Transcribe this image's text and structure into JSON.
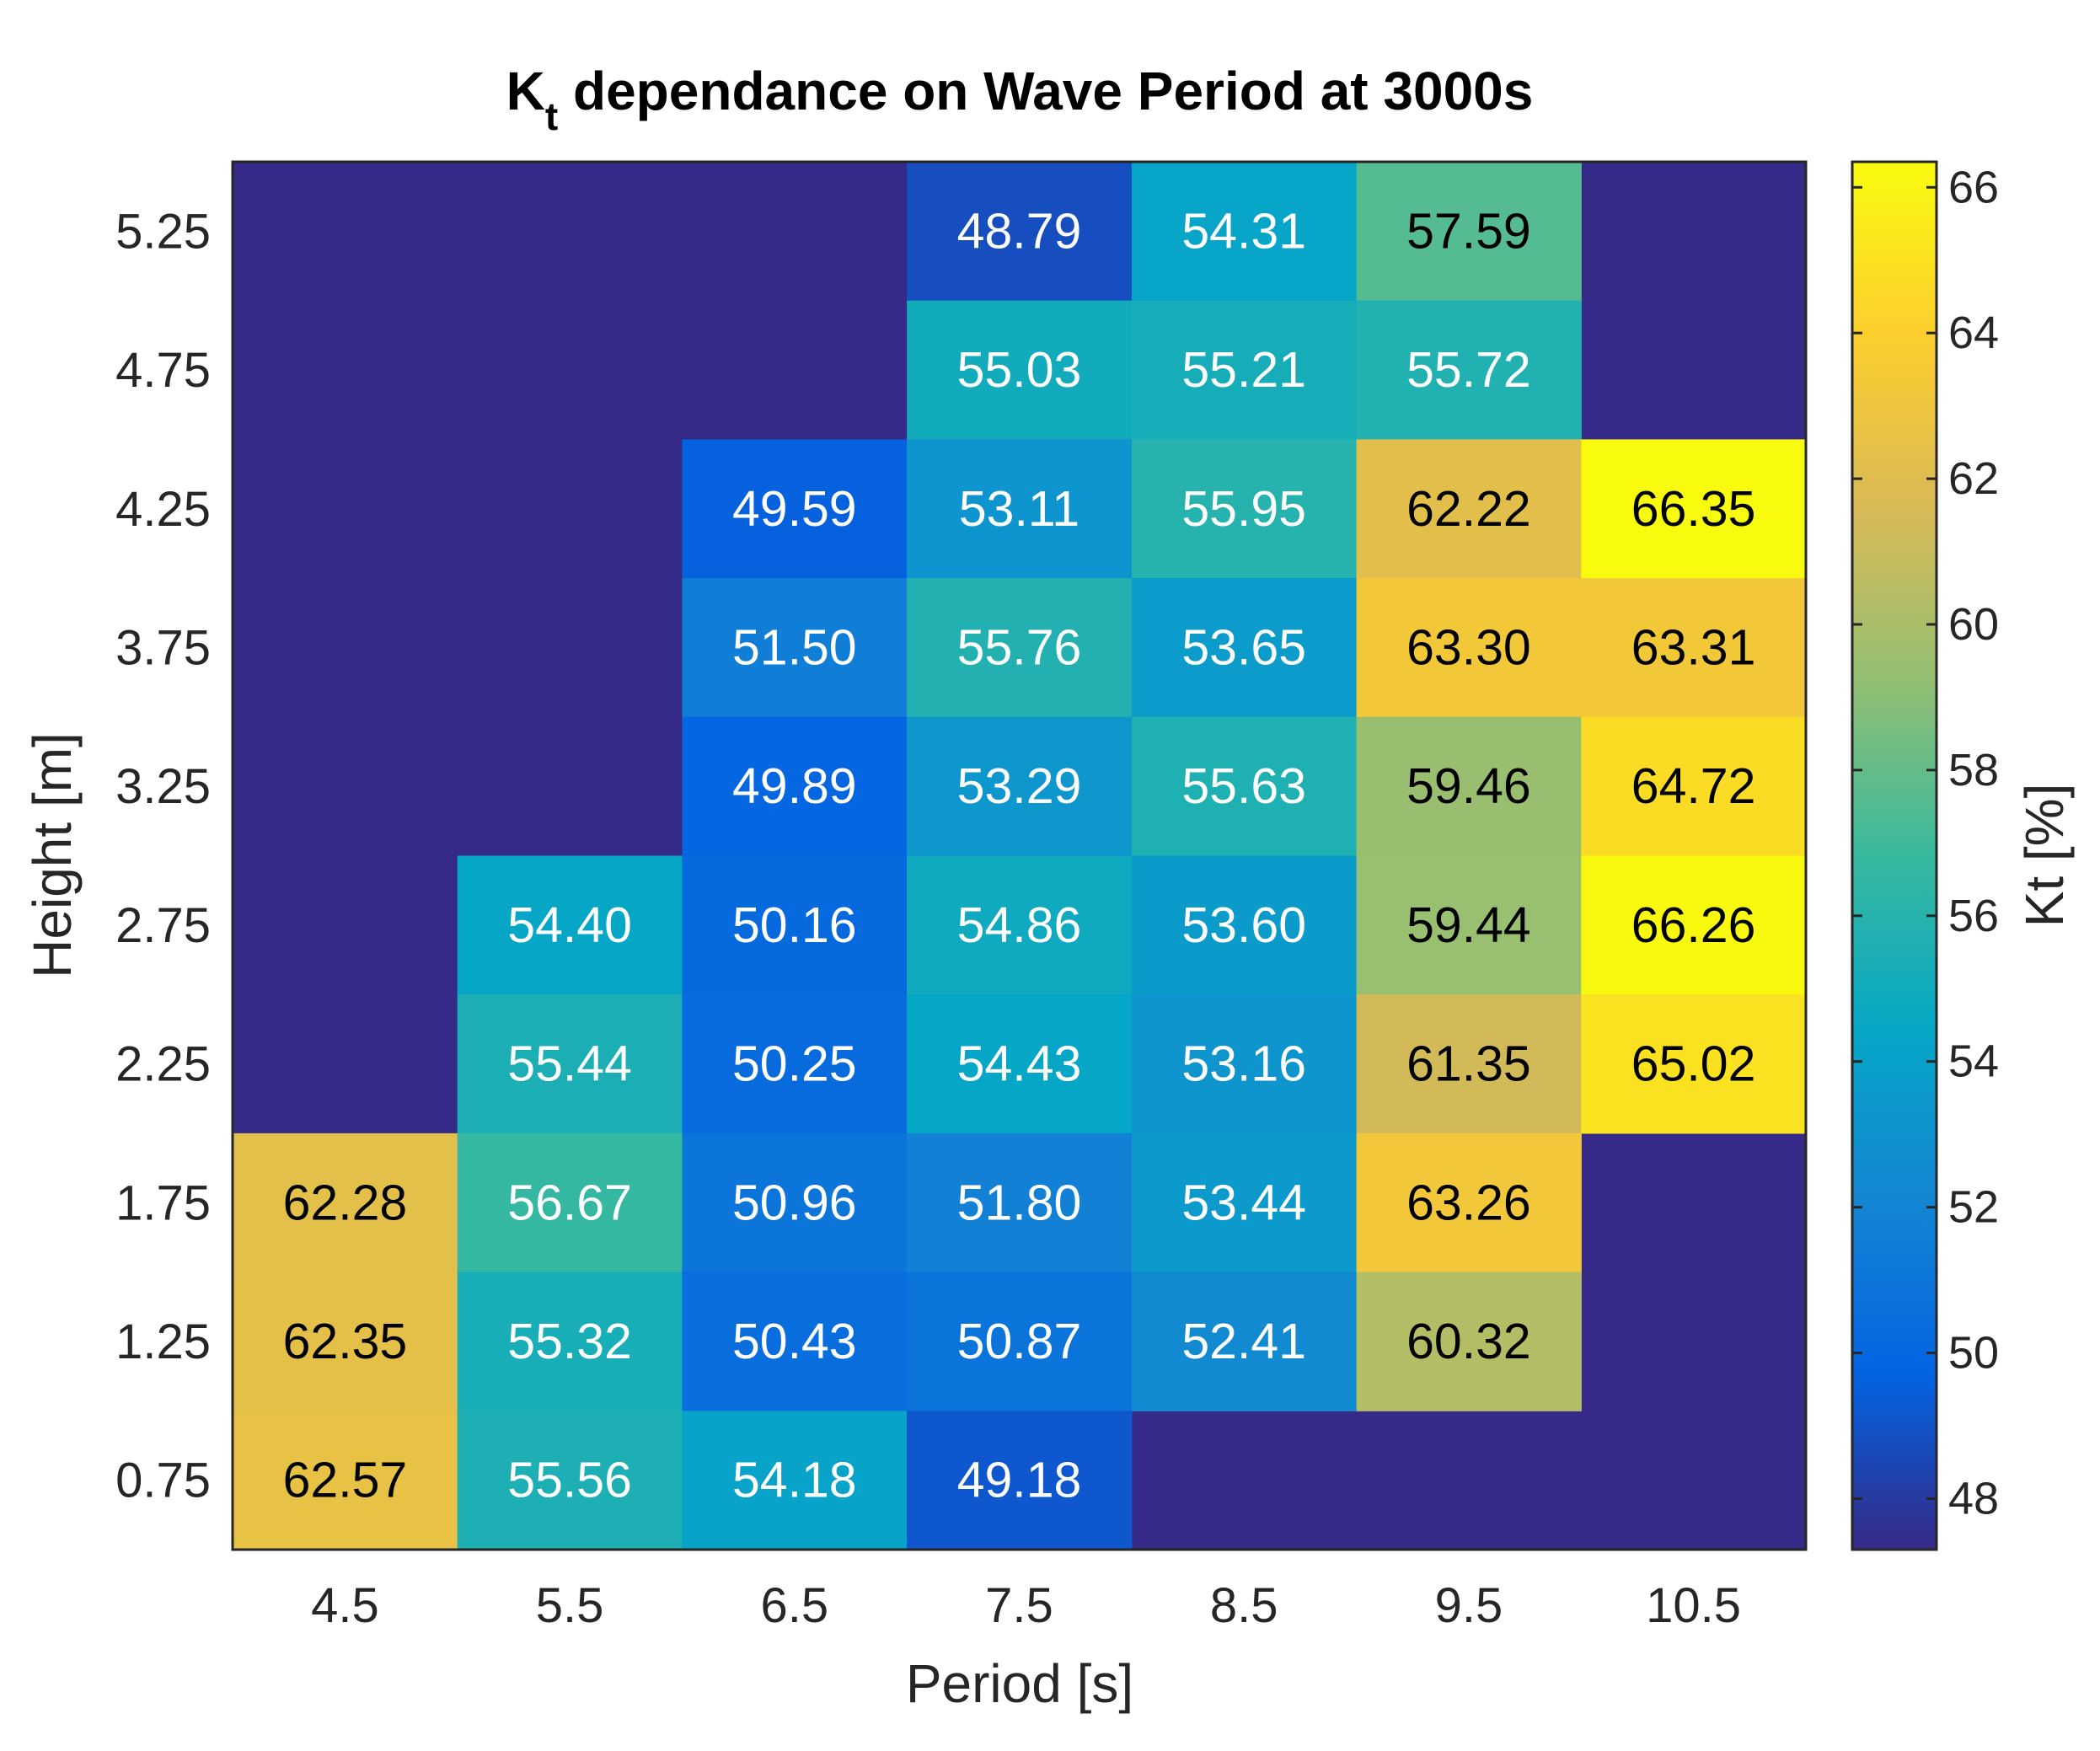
{
  "chart_data": {
    "type": "heatmap",
    "title": {
      "main": "K",
      "subscript": "t",
      "rest": " dependance on Wave Period at 3000s"
    },
    "xlabel": "Period [s]",
    "ylabel": "Height [m]",
    "x_categories": [
      "4.5",
      "5.5",
      "6.5",
      "7.5",
      "8.5",
      "9.5",
      "10.5"
    ],
    "y_categories": [
      "5.25",
      "4.75",
      "4.25",
      "3.75",
      "3.25",
      "2.75",
      "2.25",
      "1.75",
      "1.25",
      "0.75"
    ],
    "values": [
      [
        null,
        null,
        null,
        48.79,
        54.31,
        57.59,
        null
      ],
      [
        null,
        null,
        null,
        55.03,
        55.21,
        55.72,
        null
      ],
      [
        null,
        null,
        49.59,
        53.11,
        55.95,
        62.22,
        66.35
      ],
      [
        null,
        null,
        51.5,
        55.76,
        53.65,
        63.3,
        63.31
      ],
      [
        null,
        null,
        49.89,
        53.29,
        55.63,
        59.46,
        64.72
      ],
      [
        null,
        54.4,
        50.16,
        54.86,
        53.6,
        59.44,
        66.26
      ],
      [
        null,
        55.44,
        50.25,
        54.43,
        53.16,
        61.35,
        65.02
      ],
      [
        62.28,
        56.67,
        50.96,
        51.8,
        53.44,
        63.26,
        null
      ],
      [
        62.35,
        55.32,
        50.43,
        50.87,
        52.41,
        60.32,
        null
      ],
      [
        62.57,
        55.56,
        54.18,
        49.18,
        null,
        null,
        null
      ]
    ],
    "labels": [
      [
        "",
        "",
        "",
        "48.79",
        "54.31",
        "57.59",
        ""
      ],
      [
        "",
        "",
        "",
        "55.03",
        "55.21",
        "55.72",
        ""
      ],
      [
        "",
        "",
        "49.59",
        "53.11",
        "55.95",
        "62.22",
        "66.35"
      ],
      [
        "",
        "",
        "51.50",
        "55.76",
        "53.65",
        "63.30",
        "63.31"
      ],
      [
        "",
        "",
        "49.89",
        "53.29",
        "55.63",
        "59.46",
        "64.72"
      ],
      [
        "",
        "54.40",
        "50.16",
        "54.86",
        "53.60",
        "59.44",
        "66.26"
      ],
      [
        "",
        "55.44",
        "50.25",
        "54.43",
        "53.16",
        "61.35",
        "65.02"
      ],
      [
        "62.28",
        "56.67",
        "50.96",
        "51.80",
        "53.44",
        "63.26",
        ""
      ],
      [
        "62.35",
        "55.32",
        "50.43",
        "50.87",
        "52.41",
        "60.32",
        ""
      ],
      [
        "62.57",
        "55.56",
        "54.18",
        "49.18",
        "",
        "",
        ""
      ]
    ],
    "missing_color": "#352a87",
    "colorbar": {
      "label": "Kt [%]",
      "range": [
        47.3,
        66.35
      ],
      "ticks": [
        "48",
        "50",
        "52",
        "54",
        "56",
        "58",
        "60",
        "62",
        "64",
        "66"
      ],
      "colormap": "parula"
    },
    "label_dark_threshold": 57.0,
    "label_colors": {
      "light": "#ffffff",
      "dark": "#000000"
    }
  }
}
